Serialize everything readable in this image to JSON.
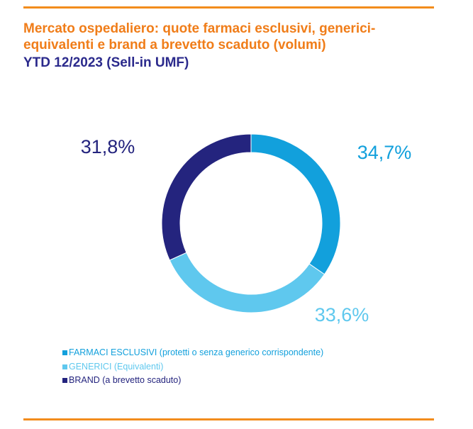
{
  "header": {
    "title": "Mercato ospedaliero: quote farmaci esclusivi, generici-equivalenti e brand a brevetto scaduto (volumi)",
    "subtitle": "YTD 12/2023 (Sell-in UMF)"
  },
  "colors": {
    "accent_orange": "#f28c1c",
    "title_orange": "#f07d19",
    "subtitle_navy": "#2b2a8c"
  },
  "chart_data": {
    "type": "pie",
    "variant": "donut",
    "title": "",
    "labels": [
      "FARMACI  ESCLUSIVI (protetti o senza generico corrispondente)",
      "GENERICI (Equivalenti)",
      "BRAND (a brevetto scaduto)"
    ],
    "values": [
      34.7,
      33.6,
      31.8
    ],
    "value_labels": [
      "34,7%",
      "33,6%",
      "31,8%"
    ],
    "colors": [
      "#12a0dc",
      "#5fc8ee",
      "#24247e"
    ],
    "legend_position": "bottom-left"
  }
}
